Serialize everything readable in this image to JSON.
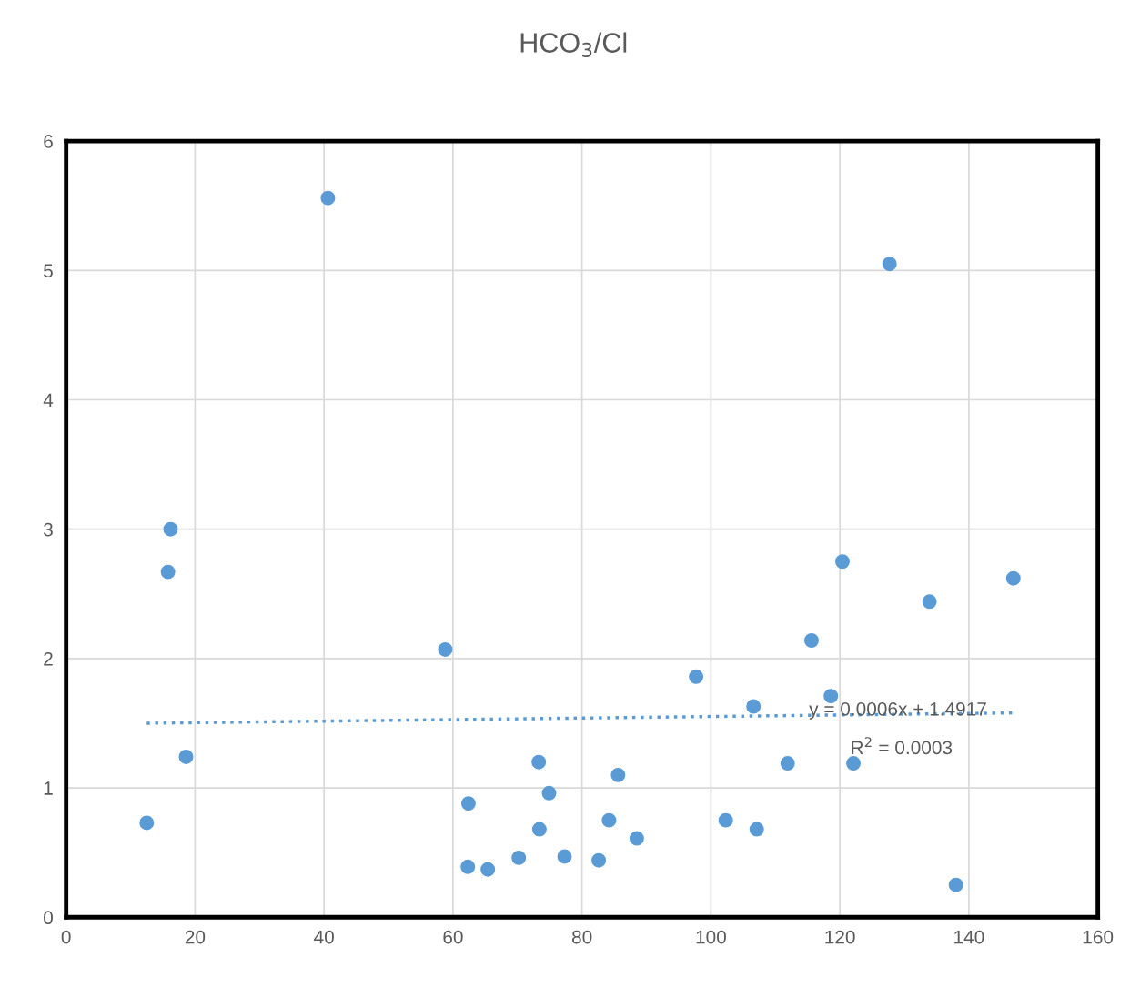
{
  "chart_data": {
    "type": "scatter",
    "title": "HCO$_{3}$/Cl",
    "xlim": [
      0,
      160
    ],
    "xticks": [
      0,
      20,
      40,
      60,
      80,
      100,
      120,
      140,
      160
    ],
    "ylim": [
      0,
      6
    ],
    "yticks": [
      0,
      1,
      2,
      3,
      4,
      5,
      6
    ],
    "grid": true,
    "marker": "circle",
    "annotations": [
      "y = 0.0006x + 1.4917",
      "R$^{2}$ = 0.0003"
    ],
    "series": [
      {
        "color": "#5b9bd5",
        "x": [
          12.5,
          16.2,
          15.8,
          18.6,
          40.6,
          58.8,
          62.4,
          62.3,
          65.4,
          70.2,
          73.3,
          73.4,
          74.9,
          77.3,
          82.6,
          84.2,
          85.6,
          88.5,
          97.7,
          102.3,
          106.6,
          107.1,
          111.9,
          115.6,
          118.6,
          120.4,
          122.1,
          127.7,
          133.9,
          138.0,
          146.9
        ],
        "values": [
          0.73,
          3.0,
          2.67,
          1.24,
          5.56,
          2.07,
          0.88,
          0.39,
          0.37,
          0.46,
          1.2,
          0.68,
          0.96,
          0.47,
          0.44,
          0.75,
          1.1,
          0.61,
          1.86,
          0.75,
          1.63,
          0.68,
          1.19,
          2.14,
          1.71,
          2.75,
          1.19,
          5.05,
          2.44,
          0.25,
          2.62
        ]
      },
      {
        "type": "line",
        "color": "#5b9bd5",
        "line_style": "dotted",
        "marker": "none",
        "x": [
          12.5,
          146.9
        ],
        "values": [
          1.5,
          1.58
        ]
      }
    ]
  }
}
